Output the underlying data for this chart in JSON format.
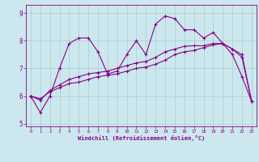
{
  "xlabel": "Windchill (Refroidissement éolien,°C)",
  "bg_color": "#cce8ee",
  "line_color": "#880088",
  "grid_color": "#aacccc",
  "xlim": [
    -0.5,
    23.5
  ],
  "ylim": [
    4.9,
    9.3
  ],
  "yticks": [
    5,
    6,
    7,
    8,
    9
  ],
  "xticks": [
    0,
    1,
    2,
    3,
    4,
    5,
    6,
    7,
    8,
    9,
    10,
    11,
    12,
    13,
    14,
    15,
    16,
    17,
    18,
    19,
    20,
    21,
    22,
    23
  ],
  "series1_x": [
    0,
    1,
    2,
    3,
    4,
    5,
    6,
    7,
    8,
    9,
    10,
    11,
    12,
    13,
    14,
    15,
    16,
    17,
    18,
    19,
    20,
    21,
    22,
    23
  ],
  "series1_y": [
    6.0,
    5.4,
    6.0,
    7.0,
    7.9,
    8.1,
    8.1,
    7.6,
    6.8,
    6.9,
    7.5,
    8.0,
    7.5,
    8.6,
    8.9,
    8.8,
    8.4,
    8.4,
    8.1,
    8.3,
    7.9,
    7.5,
    6.7,
    5.8
  ],
  "series2_x": [
    0,
    1,
    2,
    3,
    4,
    5,
    6,
    7,
    8,
    9,
    10,
    11,
    12,
    13,
    14,
    15,
    16,
    17,
    18,
    19,
    20,
    21,
    22,
    23
  ],
  "series2_y": [
    6.0,
    5.9,
    6.15,
    6.3,
    6.45,
    6.5,
    6.6,
    6.7,
    6.75,
    6.8,
    6.9,
    7.0,
    7.05,
    7.15,
    7.3,
    7.5,
    7.6,
    7.65,
    7.75,
    7.85,
    7.9,
    7.7,
    7.5,
    5.8
  ],
  "series3_x": [
    0,
    1,
    2,
    3,
    4,
    5,
    6,
    7,
    8,
    9,
    10,
    11,
    12,
    13,
    14,
    15,
    16,
    17,
    18,
    19,
    20,
    21,
    22,
    23
  ],
  "series3_y": [
    6.0,
    5.85,
    6.2,
    6.4,
    6.6,
    6.7,
    6.8,
    6.85,
    6.9,
    7.0,
    7.1,
    7.2,
    7.25,
    7.4,
    7.6,
    7.7,
    7.8,
    7.82,
    7.82,
    7.9,
    7.9,
    7.7,
    7.4,
    5.8
  ]
}
